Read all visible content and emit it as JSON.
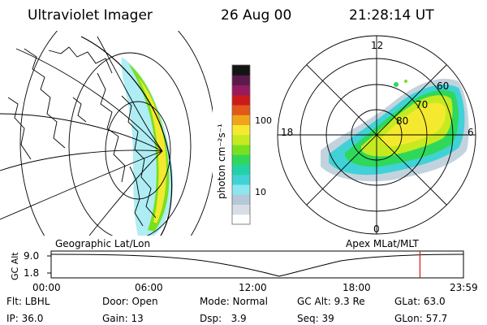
{
  "header": {
    "instrument": "Ultraviolet Imager",
    "date": "26 Aug 00",
    "time": "21:28:14 UT"
  },
  "left_panel": {
    "label": "Geographic Lat/Lon"
  },
  "right_panel": {
    "label": "Apex MLat/MLT",
    "mlt_labels": {
      "top": "12",
      "left": "18",
      "right": "6",
      "bottom": "0"
    },
    "mlat_labels": [
      "60",
      "70",
      "80"
    ]
  },
  "colorbar": {
    "unit_label": "photon cm⁻²s⁻¹",
    "ticks": [
      "100",
      "10"
    ],
    "colors": [
      "#ffffff",
      "#d8dde6",
      "#b4c8d6",
      "#8ce6f0",
      "#40d2d6",
      "#22d2a6",
      "#2fd85a",
      "#79e020",
      "#c6ea20",
      "#f5e930",
      "#f1a31a",
      "#e0581a",
      "#cc1a1a",
      "#951a5e",
      "#5a1a4a",
      "#141414"
    ]
  },
  "timeline": {
    "y_axis_label": "GC Alt",
    "y_ticks": [
      "9.0",
      "1.8"
    ],
    "x_ticks": [
      "00:00",
      "06:00",
      "12:00",
      "18:00",
      "23:59"
    ],
    "current_time_fraction": 0.8945
  },
  "footer": {
    "row1": [
      "Flt: LBHL",
      "Door: Open",
      "Mode: Normal",
      "GC Alt: 9.3 Re",
      "GLat: 63.0"
    ],
    "row2": [
      "IP: 36.0",
      "Gain: 13",
      "Dsp:   3.9",
      "Seq: 39",
      "GLon: 57.7"
    ]
  },
  "colors": {
    "auroral_green": "#2fd85a",
    "auroral_yellow": "#f5e930",
    "marker": "#cc1a1a"
  }
}
